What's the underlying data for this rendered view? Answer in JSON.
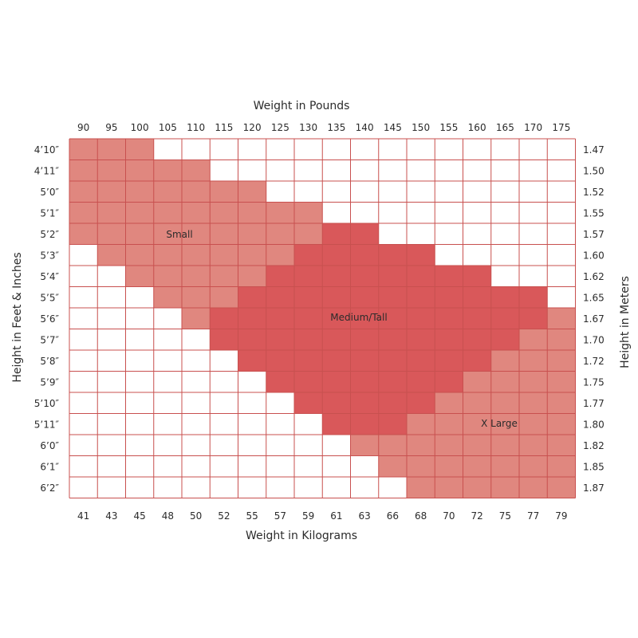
{
  "chart_data": {
    "type": "heatmap",
    "title": "",
    "top_axis_title": "Weight in Pounds",
    "bottom_axis_title": "Weight in Kilograms",
    "left_axis_title": "Height in Feet & Inches",
    "right_axis_title": "Height in Meters",
    "pounds": [
      "90",
      "95",
      "100",
      "105",
      "110",
      "115",
      "120",
      "125",
      "130",
      "135",
      "140",
      "145",
      "150",
      "155",
      "160",
      "165",
      "170",
      "175"
    ],
    "kilograms": [
      "41",
      "43",
      "45",
      "48",
      "50",
      "52",
      "55",
      "57",
      "59",
      "61",
      "63",
      "66",
      "68",
      "70",
      "72",
      "75",
      "77",
      "79"
    ],
    "heights_ft_in": [
      "4’10″",
      "4’11″",
      "5’0″",
      "5’1″",
      "5’2″",
      "5’3″",
      "5’4″",
      "5’5″",
      "5’6″",
      "5’7″",
      "5’8″",
      "5’9″",
      "5’10″",
      "5’11″",
      "6’0″",
      "6’1″",
      "6’2″"
    ],
    "heights_m": [
      "1.47",
      "1.50",
      "1.52",
      "1.55",
      "1.57",
      "1.60",
      "1.62",
      "1.65",
      "1.67",
      "1.70",
      "1.72",
      "1.75",
      "1.77",
      "1.80",
      "1.82",
      "1.85",
      "1.87"
    ],
    "sizes": [
      {
        "code": "S",
        "name": "Small",
        "color": "#e0877f"
      },
      {
        "code": "M",
        "name": "Medium/Tall",
        "color": "#d9585a"
      },
      {
        "code": "X",
        "name": "X Large",
        "color": "#e0877f"
      }
    ],
    "grid": [
      "SSS...............",
      "SSSSS.............",
      "SSSSSSS...........",
      "SSSSSSSSS.........",
      "SSSSSSSSSMM.......",
      ".SSSSSSSMMMMM.....",
      "..SSSSSMMMMMMMM...",
      "...SSSMMMMMMMMMMM.",
      "....SMMMMMMMMMMMMX",
      ".....MMMMMMMMMMMXX",
      "......MMMMMMMMMXXX",
      ".......MMMMMMMXXXX",
      "........MMMMMXXXXX",
      ".........MMMXXXXXX",
      "..........XXXXXXXX",
      "...........XXXXXXX",
      "............XXXXXX"
    ],
    "grid_line_color": "#c8504f",
    "empty_cell_color": "#ffffff"
  }
}
